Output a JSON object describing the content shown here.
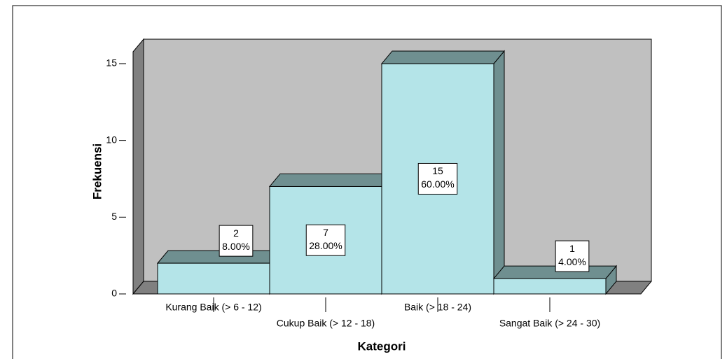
{
  "chart_data": {
    "type": "bar3d",
    "categories": [
      "Kurang Baik (> 6 - 12)",
      "Cukup Baik (> 12 - 18)",
      "Baik (> 18 - 24)",
      "Sangat Baik (> 24 - 30)"
    ],
    "values": [
      2,
      7,
      15,
      1
    ],
    "percent_labels": [
      "8.00%",
      "28.00%",
      "60.00%",
      "4.00%"
    ],
    "ylim": [
      0,
      16
    ],
    "yticks": [
      0,
      5,
      10,
      15
    ],
    "xlabel": "Kategori",
    "ylabel": "Frekuensi",
    "color": "#b4e4e8",
    "shade_color": "#6f8f90"
  }
}
